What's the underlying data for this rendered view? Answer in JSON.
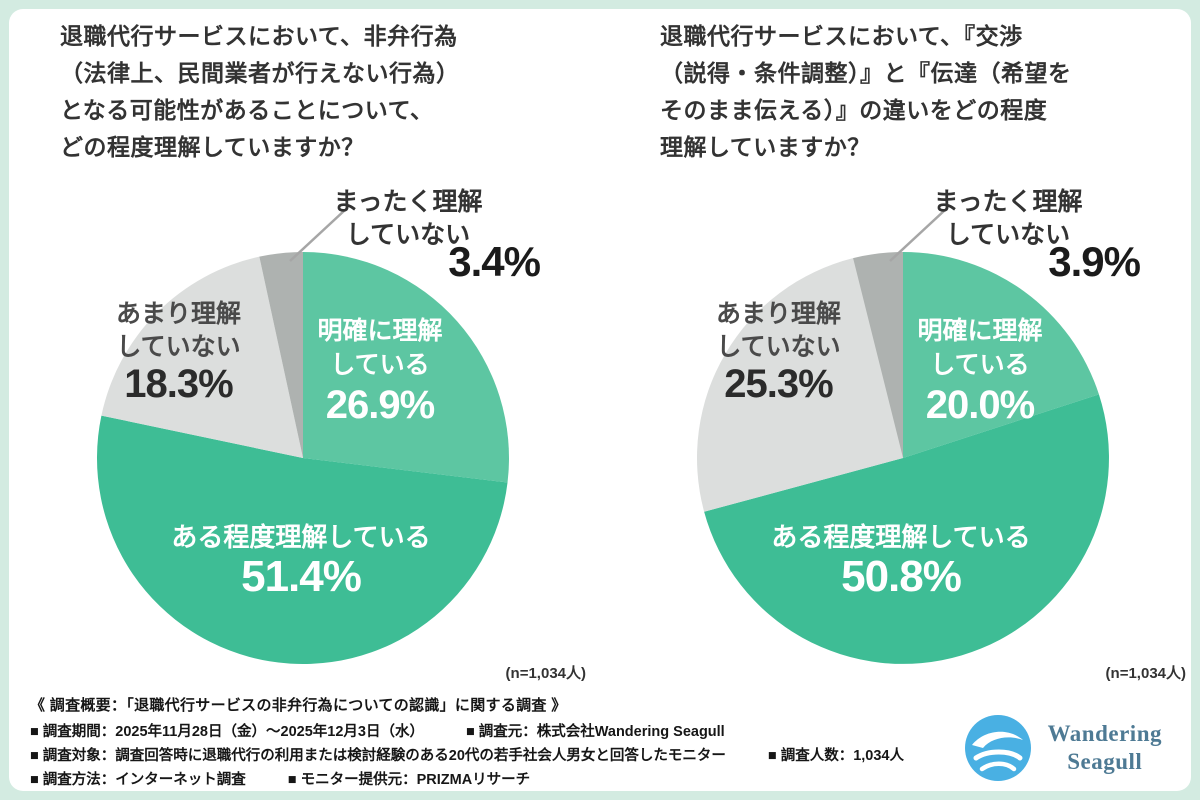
{
  "page": {
    "border_color": "#d3ebe1",
    "panel_color": "#ffffff"
  },
  "chart_data": [
    {
      "type": "pie",
      "title": "退職代行サービスにおいて、非弁行為（法律上、民間業者が行えない行為）となる可能性があることについて、どの程度理解していますか？",
      "title_lines": [
        "退職代行サービスにおいて、非弁行為",
        "（法律上、民間業者が行えない行為）",
        "となる可能性があることについて、",
        "どの程度理解していますか？"
      ],
      "categories": [
        "明確に理解している",
        "ある程度理解している",
        "あまり理解していない",
        "まったく理解していない"
      ],
      "values": [
        26.9,
        51.4,
        18.3,
        3.4
      ],
      "colors": [
        "#5dc6a2",
        "#3ebd95",
        "#dcdedd",
        "#aeb2b0"
      ],
      "start_angle": 0,
      "direction": "clockwise",
      "note": "(n=1,034人)",
      "labels": {
        "clear": {
          "lines": [
            "明確に理解",
            "している"
          ],
          "pct": "26.9%"
        },
        "some": {
          "line": "ある程度理解している",
          "pct": "51.4%"
        },
        "little": {
          "lines": [
            "あまり理解",
            "していない"
          ],
          "pct": "18.3%"
        },
        "none": {
          "lines": [
            "まったく理解",
            "していない"
          ],
          "pct": "3.4%"
        }
      }
    },
    {
      "type": "pie",
      "title": "退職代行サービスにおいて、『交渉（説得・条件調整）』と『伝達（希望をそのまま伝える）』の違いをどの程度理解していますか？",
      "title_lines": [
        "退職代行サービスにおいて、『交渉",
        "（説得・条件調整）』と『伝達（希望を",
        "そのまま伝える）』の違いをどの程度",
        "理解していますか？"
      ],
      "categories": [
        "明確に理解している",
        "ある程度理解している",
        "あまり理解していない",
        "まったく理解していない"
      ],
      "values": [
        20.0,
        50.8,
        25.3,
        3.9
      ],
      "colors": [
        "#5dc6a2",
        "#3ebd95",
        "#dcdedd",
        "#aeb2b0"
      ],
      "start_angle": 0,
      "direction": "clockwise",
      "note": "(n=1,034人)",
      "labels": {
        "clear": {
          "lines": [
            "明確に理解",
            "している"
          ],
          "pct": "20.0%"
        },
        "some": {
          "line": "ある程度理解している",
          "pct": "50.8%"
        },
        "little": {
          "lines": [
            "あまり理解",
            "していない"
          ],
          "pct": "25.3%"
        },
        "none": {
          "lines": [
            "まったく理解",
            "していない"
          ],
          "pct": "3.9%"
        }
      }
    }
  ],
  "footer": {
    "heading": "《 調査概要：「退職代行サービスの非弁行為についての認識」に関する調査 》",
    "rows": [
      [
        "■ 調査期間：2025年11月28日（金）〜2025年12月3日（水）",
        "■ 調査元：株式会社Wandering Seagull"
      ],
      [
        "■ 調査対象：調査回答時に退職代行の利用または検討経験のある20代の若手社会人男女と回答したモニター",
        "■ 調査人数：1,034人"
      ],
      [
        "■ 調査方法：インターネット調査",
        "■ モニター提供元：PRIZMAリサーチ"
      ]
    ]
  },
  "logo": {
    "icon": "seagull-wave-icon",
    "line1": "Wandering",
    "line2": "Seagull",
    "text_color": "#4e7a94"
  }
}
